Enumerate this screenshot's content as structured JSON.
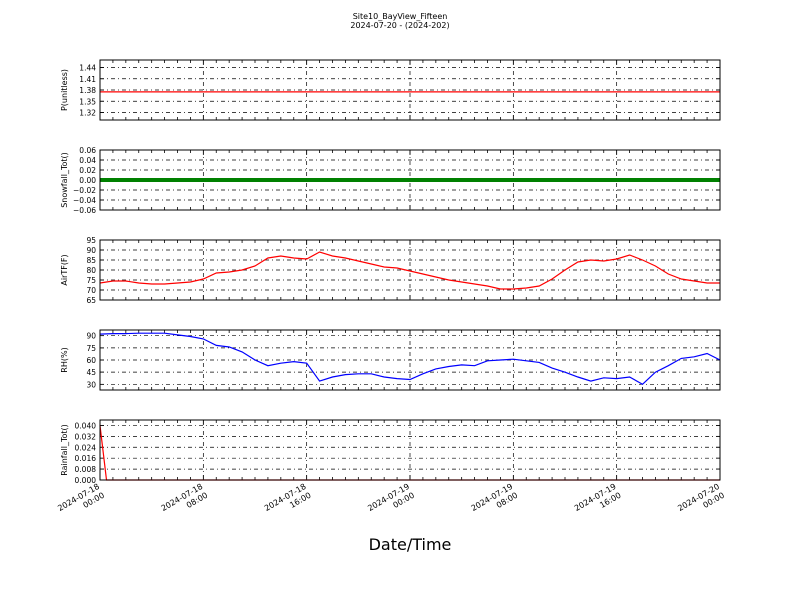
{
  "title": "Site10_BayView_Fifteen",
  "subtitle": "2024-07-20 - (2024-202)",
  "xlabel": "Date/Time",
  "x_ticks": [
    {
      "l1": "2024-07-18",
      "l2": "00:00"
    },
    {
      "l1": "2024-07-18",
      "l2": "08:00"
    },
    {
      "l1": "2024-07-18",
      "l2": "16:00"
    },
    {
      "l1": "2024-07-19",
      "l2": "00:00"
    },
    {
      "l1": "2024-07-19",
      "l2": "08:00"
    },
    {
      "l1": "2024-07-19",
      "l2": "16:00"
    },
    {
      "l1": "2024-07-20",
      "l2": "00:00"
    }
  ],
  "chart_data": [
    {
      "type": "line",
      "ylabel": "P(unitless)",
      "ylim": [
        1.3,
        1.46
      ],
      "yticks": [
        "1.44",
        "1.41",
        "1.38",
        "1.35",
        "1.32"
      ],
      "ytick_values": [
        1.44,
        1.41,
        1.38,
        1.35,
        1.32
      ],
      "color": "#ff0000",
      "grid": true,
      "series": [
        {
          "x": [
            "2024-07-18 00:00",
            "2024-07-20 00:00"
          ],
          "values": [
            1.375,
            1.375
          ]
        }
      ]
    },
    {
      "type": "line",
      "ylabel": "Snowfall_Tot()",
      "ylim": [
        -0.06,
        0.06
      ],
      "yticks": [
        "0.06",
        "0.04",
        "0.02",
        "0.00",
        "−0.02",
        "−0.04",
        "−0.06"
      ],
      "ytick_values": [
        0.06,
        0.04,
        0.02,
        0.0,
        -0.02,
        -0.04,
        -0.06
      ],
      "color": "#008000",
      "grid": true,
      "series": [
        {
          "x": [
            "2024-07-18 00:00",
            "2024-07-20 00:00"
          ],
          "values": [
            0,
            0
          ]
        }
      ]
    },
    {
      "type": "line",
      "ylabel": "AirTF(F)",
      "ylim": [
        65,
        95
      ],
      "yticks": [
        "95",
        "90",
        "85",
        "80",
        "75",
        "70",
        "65"
      ],
      "ytick_values": [
        95,
        90,
        85,
        80,
        75,
        70,
        65
      ],
      "color": "#ff0000",
      "grid": true,
      "series": [
        {
          "x": [
            "2024-07-18 00:00",
            "2024-07-18 01:00",
            "2024-07-18 02:00",
            "2024-07-18 03:00",
            "2024-07-18 04:00",
            "2024-07-18 05:00",
            "2024-07-18 06:00",
            "2024-07-18 07:00",
            "2024-07-18 08:00",
            "2024-07-18 09:00",
            "2024-07-18 10:00",
            "2024-07-18 11:00",
            "2024-07-18 12:00",
            "2024-07-18 13:00",
            "2024-07-18 14:00",
            "2024-07-18 15:00",
            "2024-07-18 16:00",
            "2024-07-18 17:00",
            "2024-07-18 18:00",
            "2024-07-18 19:00",
            "2024-07-18 20:00",
            "2024-07-18 21:00",
            "2024-07-18 22:00",
            "2024-07-18 23:00",
            "2024-07-19 00:00",
            "2024-07-19 01:00",
            "2024-07-19 02:00",
            "2024-07-19 03:00",
            "2024-07-19 04:00",
            "2024-07-19 05:00",
            "2024-07-19 06:00",
            "2024-07-19 07:00",
            "2024-07-19 08:00",
            "2024-07-19 09:00",
            "2024-07-19 10:00",
            "2024-07-19 11:00",
            "2024-07-19 12:00",
            "2024-07-19 13:00",
            "2024-07-19 14:00",
            "2024-07-19 15:00",
            "2024-07-19 16:00",
            "2024-07-19 17:00",
            "2024-07-19 18:00",
            "2024-07-19 19:00",
            "2024-07-19 20:00",
            "2024-07-19 21:00",
            "2024-07-19 22:00",
            "2024-07-19 23:00",
            "2024-07-20 00:00"
          ],
          "values": [
            73.5,
            74.5,
            74.5,
            73.5,
            73,
            73,
            73.5,
            74,
            75.5,
            78.5,
            79,
            80,
            82,
            86,
            87,
            86,
            85.5,
            89,
            87,
            86,
            84.5,
            83,
            81.5,
            81,
            79.5,
            78,
            76.5,
            75,
            74,
            73,
            72,
            70.5,
            70.5,
            71,
            72,
            75.5,
            80,
            84,
            85,
            84.5,
            85.5,
            87.5,
            85,
            82,
            78,
            75.5,
            74.5,
            73.5,
            73.5
          ]
        }
      ]
    },
    {
      "type": "line",
      "ylabel": "RH(%)",
      "ylim": [
        23,
        97
      ],
      "yticks": [
        "90",
        "75",
        "60",
        "45",
        "30"
      ],
      "ytick_values": [
        90,
        75,
        60,
        45,
        30
      ],
      "color": "#0000ff",
      "grid": true,
      "series": [
        {
          "x": [
            "2024-07-18 00:00",
            "2024-07-18 01:00",
            "2024-07-18 02:00",
            "2024-07-18 03:00",
            "2024-07-18 04:00",
            "2024-07-18 05:00",
            "2024-07-18 06:00",
            "2024-07-18 07:00",
            "2024-07-18 08:00",
            "2024-07-18 09:00",
            "2024-07-18 10:00",
            "2024-07-18 11:00",
            "2024-07-18 12:00",
            "2024-07-18 13:00",
            "2024-07-18 14:00",
            "2024-07-18 15:00",
            "2024-07-18 16:00",
            "2024-07-18 17:00",
            "2024-07-18 18:00",
            "2024-07-18 19:00",
            "2024-07-18 20:00",
            "2024-07-18 21:00",
            "2024-07-18 22:00",
            "2024-07-18 23:00",
            "2024-07-19 00:00",
            "2024-07-19 01:00",
            "2024-07-19 02:00",
            "2024-07-19 03:00",
            "2024-07-19 04:00",
            "2024-07-19 05:00",
            "2024-07-19 06:00",
            "2024-07-19 07:00",
            "2024-07-19 08:00",
            "2024-07-19 09:00",
            "2024-07-19 10:00",
            "2024-07-19 11:00",
            "2024-07-19 12:00",
            "2024-07-19 13:00",
            "2024-07-19 14:00",
            "2024-07-19 15:00",
            "2024-07-19 16:00",
            "2024-07-19 17:00",
            "2024-07-19 18:00",
            "2024-07-19 19:00",
            "2024-07-19 20:00",
            "2024-07-19 21:00",
            "2024-07-19 22:00",
            "2024-07-19 23:00",
            "2024-07-20 00:00"
          ],
          "values": [
            92,
            92.5,
            92.5,
            93,
            93,
            93,
            91,
            89,
            86,
            78,
            76,
            70,
            60,
            53,
            56,
            58,
            56,
            34,
            39,
            42,
            43,
            43,
            39,
            37,
            36,
            43,
            49,
            52,
            54,
            53,
            59,
            60,
            61,
            59,
            57,
            50,
            45,
            39,
            34,
            38,
            37,
            39,
            30,
            45,
            53,
            62,
            64,
            68,
            60
          ]
        }
      ]
    },
    {
      "type": "line",
      "ylabel": "Rainfall_Tot()",
      "ylim": [
        0,
        0.044
      ],
      "yticks": [
        "0.040",
        "0.032",
        "0.024",
        "0.016",
        "0.008",
        "0.000"
      ],
      "ytick_values": [
        0.04,
        0.032,
        0.024,
        0.016,
        0.008,
        0.0
      ],
      "color": "#ff0000",
      "grid": true,
      "series": [
        {
          "x": [
            "2024-07-18 00:00",
            "2024-07-18 00:30",
            "2024-07-20 00:00"
          ],
          "values": [
            0.04,
            0,
            0
          ]
        }
      ]
    }
  ]
}
